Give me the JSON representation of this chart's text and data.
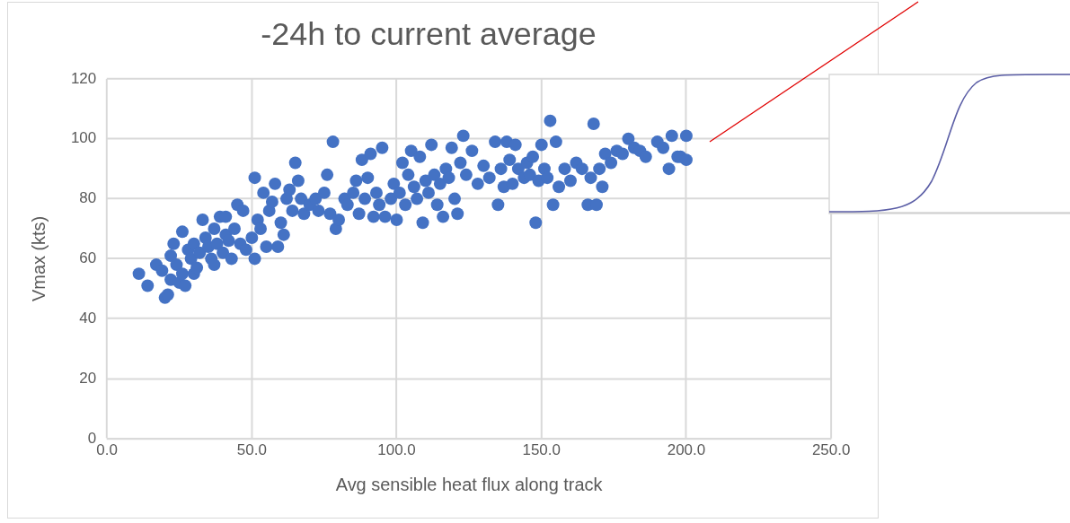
{
  "chart_data": {
    "type": "scatter",
    "title": "-24h to current average",
    "xlabel": "Avg sensible heat flux along track",
    "ylabel": "Vmax (kts)",
    "x": [
      11,
      14,
      17,
      19,
      20,
      21,
      22,
      22,
      23,
      24,
      25,
      26,
      26,
      27,
      28,
      29,
      30,
      30,
      31,
      32,
      33,
      34,
      35,
      36,
      37,
      37,
      38,
      39,
      40,
      41,
      41,
      42,
      43,
      44,
      45,
      46,
      47,
      48,
      50,
      51,
      51,
      52,
      53,
      54,
      55,
      56,
      57,
      58,
      59,
      60,
      61,
      62,
      63,
      64,
      65,
      66,
      67,
      68,
      70,
      72,
      73,
      75,
      76,
      77,
      78,
      79,
      80,
      82,
      83,
      85,
      86,
      87,
      88,
      89,
      90,
      91,
      92,
      93,
      94,
      95,
      96,
      98,
      99,
      100,
      101,
      102,
      103,
      104,
      105,
      106,
      107,
      108,
      109,
      110,
      111,
      112,
      113,
      114,
      115,
      116,
      117,
      118,
      119,
      120,
      121,
      122,
      123,
      124,
      126,
      128,
      130,
      132,
      134,
      135,
      136,
      137,
      138,
      139,
      140,
      141,
      142,
      144,
      145,
      146,
      147,
      148,
      149,
      150,
      151,
      152,
      153,
      154,
      155,
      156,
      158,
      160,
      162,
      164,
      166,
      167,
      168,
      169,
      170,
      171,
      172,
      174,
      176,
      178,
      180,
      182,
      184,
      186,
      190,
      192,
      194,
      195,
      197,
      198,
      200,
      200
    ],
    "values": [
      55,
      51,
      58,
      56,
      47,
      48,
      53,
      61,
      65,
      58,
      52,
      55,
      69,
      51,
      63,
      60,
      55,
      65,
      57,
      62,
      73,
      67,
      64,
      60,
      58,
      70,
      65,
      74,
      62,
      74,
      68,
      66,
      60,
      70,
      78,
      65,
      76,
      63,
      67,
      87,
      60,
      73,
      70,
      82,
      64,
      76,
      79,
      85,
      64,
      72,
      68,
      80,
      83,
      76,
      92,
      86,
      80,
      75,
      78,
      80,
      76,
      82,
      88,
      75,
      99,
      70,
      73,
      80,
      78,
      82,
      86,
      75,
      93,
      80,
      87,
      95,
      74,
      82,
      78,
      97,
      74,
      80,
      85,
      73,
      82,
      92,
      78,
      88,
      96,
      84,
      80,
      94,
      72,
      86,
      82,
      98,
      88,
      78,
      85,
      74,
      90,
      87,
      97,
      80,
      75,
      92,
      101,
      88,
      96,
      85,
      91,
      87,
      99,
      78,
      90,
      84,
      99,
      93,
      85,
      98,
      90,
      87,
      92,
      88,
      94,
      72,
      86,
      98,
      90,
      87,
      106,
      78,
      99,
      84,
      90,
      86,
      92,
      90,
      78,
      87,
      105,
      78,
      90,
      84,
      95,
      92,
      96,
      95,
      100,
      97,
      96,
      94,
      99,
      97,
      90,
      101,
      94,
      94,
      101,
      93
    ],
    "color": "#4472c4",
    "marker": "circle",
    "xlim": [
      0,
      250
    ],
    "xticks": [
      {
        "value": 0,
        "label": "0.0"
      },
      {
        "value": 50,
        "label": "50.0"
      },
      {
        "value": 100,
        "label": "100.0"
      },
      {
        "value": 150,
        "label": "150.0"
      },
      {
        "value": 200,
        "label": "200.0"
      },
      {
        "value": 250,
        "label": "250.0"
      }
    ],
    "ylim": [
      0,
      120
    ],
    "yticks": [
      0,
      20,
      40,
      60,
      80,
      100,
      120
    ],
    "grid": true
  }
}
